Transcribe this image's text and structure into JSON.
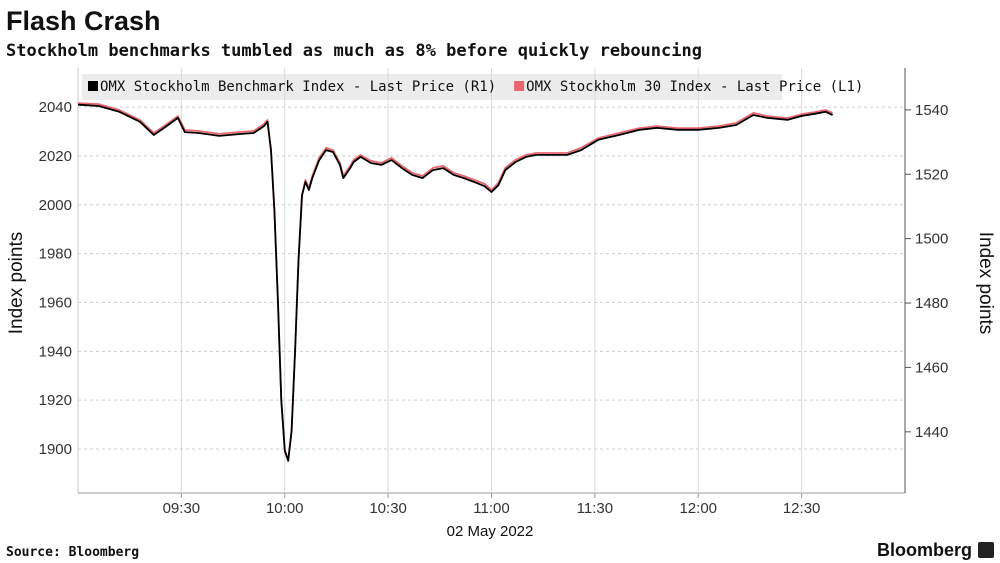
{
  "chart_data": {
    "type": "line",
    "title": "Flash Crash",
    "subtitle": "Stockholm benchmarks tumbled as much as 8% before quickly rebouncing",
    "x_label": "02 May 2022",
    "y_label": "Index points",
    "y2_label": "Index points",
    "source": "Source: Bloomberg",
    "brand": "Bloomberg",
    "grid": true,
    "xlim": [
      540,
      780
    ],
    "xticks": [
      {
        "value": 570,
        "label": "09:30"
      },
      {
        "value": 600,
        "label": "10:00"
      },
      {
        "value": 630,
        "label": "10:30"
      },
      {
        "value": 660,
        "label": "11:00"
      },
      {
        "value": 690,
        "label": "11:30"
      },
      {
        "value": 720,
        "label": "12:00"
      },
      {
        "value": 750,
        "label": "12:30"
      }
    ],
    "ylim": [
      1882,
      2056
    ],
    "yticks": [
      1900,
      1920,
      1940,
      1960,
      1980,
      2000,
      2020,
      2040
    ],
    "y2lim": [
      1421,
      1553
    ],
    "y2ticks": [
      1440,
      1460,
      1480,
      1500,
      1520,
      1540
    ],
    "x": [
      540,
      546,
      552,
      558,
      562,
      565,
      569,
      571,
      575,
      581,
      587,
      591,
      594,
      595,
      596,
      597,
      598,
      599,
      600,
      601,
      602,
      603,
      604,
      605,
      606,
      607,
      608,
      610,
      612,
      614,
      616,
      617,
      619,
      620,
      622,
      625,
      628,
      631,
      634,
      637,
      640,
      643,
      646,
      649,
      652,
      655,
      658,
      660,
      662,
      664,
      667,
      670,
      673,
      678,
      682,
      686,
      691,
      697,
      703,
      708,
      714,
      720,
      726,
      731,
      736,
      740,
      746,
      750,
      754,
      757,
      759
    ],
    "series": [
      {
        "name": "OMX Stockholm Benchmark Index - Last Price (R1)",
        "color": "#000000",
        "axis": "y2",
        "values": [
          1541.6,
          1541.2,
          1539.4,
          1536.3,
          1532.2,
          1534.4,
          1537.5,
          1533.1,
          1532.8,
          1531.9,
          1532.5,
          1532.8,
          1535.0,
          1536.3,
          1527.5,
          1508.8,
          1480.8,
          1449.7,
          1434.1,
          1431.0,
          1440.3,
          1465.2,
          1493.3,
          1513.5,
          1517.6,
          1515.1,
          1518.8,
          1524.4,
          1527.5,
          1526.9,
          1522.9,
          1518.8,
          1521.9,
          1523.8,
          1525.4,
          1523.5,
          1522.9,
          1524.4,
          1521.9,
          1519.8,
          1518.8,
          1521.3,
          1521.9,
          1519.8,
          1518.8,
          1517.6,
          1516.3,
          1514.5,
          1516.6,
          1521.3,
          1523.8,
          1525.4,
          1526.0,
          1526.0,
          1526.0,
          1527.5,
          1530.7,
          1532.2,
          1533.8,
          1534.4,
          1533.8,
          1533.8,
          1534.4,
          1535.3,
          1538.4,
          1537.5,
          1536.9,
          1538.1,
          1538.8,
          1539.4,
          1538.4
        ]
      },
      {
        "name": "OMX Stockholm 30 Index - Last Price (L1)",
        "color": "#e8666c",
        "axis": "y",
        "values": [
          2041.6,
          2041.2,
          2038.8,
          2034.7,
          2029.4,
          2032.2,
          2036.3,
          2030.6,
          2030.2,
          2029.0,
          2029.8,
          2030.2,
          2033.1,
          2034.7,
          2022.0,
          1997.6,
          1960.8,
          1920.0,
          1899.6,
          1895.5,
          1907.8,
          1940.4,
          1977.1,
          2003.7,
          2010.2,
          2006.9,
          2011.8,
          2019.2,
          2023.3,
          2022.4,
          2017.1,
          2011.8,
          2015.9,
          2018.4,
          2020.4,
          2018.0,
          2017.1,
          2019.2,
          2015.9,
          2013.1,
          2011.8,
          2015.1,
          2015.9,
          2013.1,
          2011.8,
          2010.2,
          2008.6,
          2006.1,
          2009.0,
          2015.1,
          2018.4,
          2020.4,
          2021.2,
          2021.2,
          2021.2,
          2023.3,
          2027.3,
          2029.4,
          2031.4,
          2032.2,
          2031.4,
          2031.4,
          2032.2,
          2033.5,
          2037.6,
          2036.3,
          2035.5,
          2037.1,
          2038.0,
          2038.8,
          2037.6
        ]
      }
    ]
  }
}
